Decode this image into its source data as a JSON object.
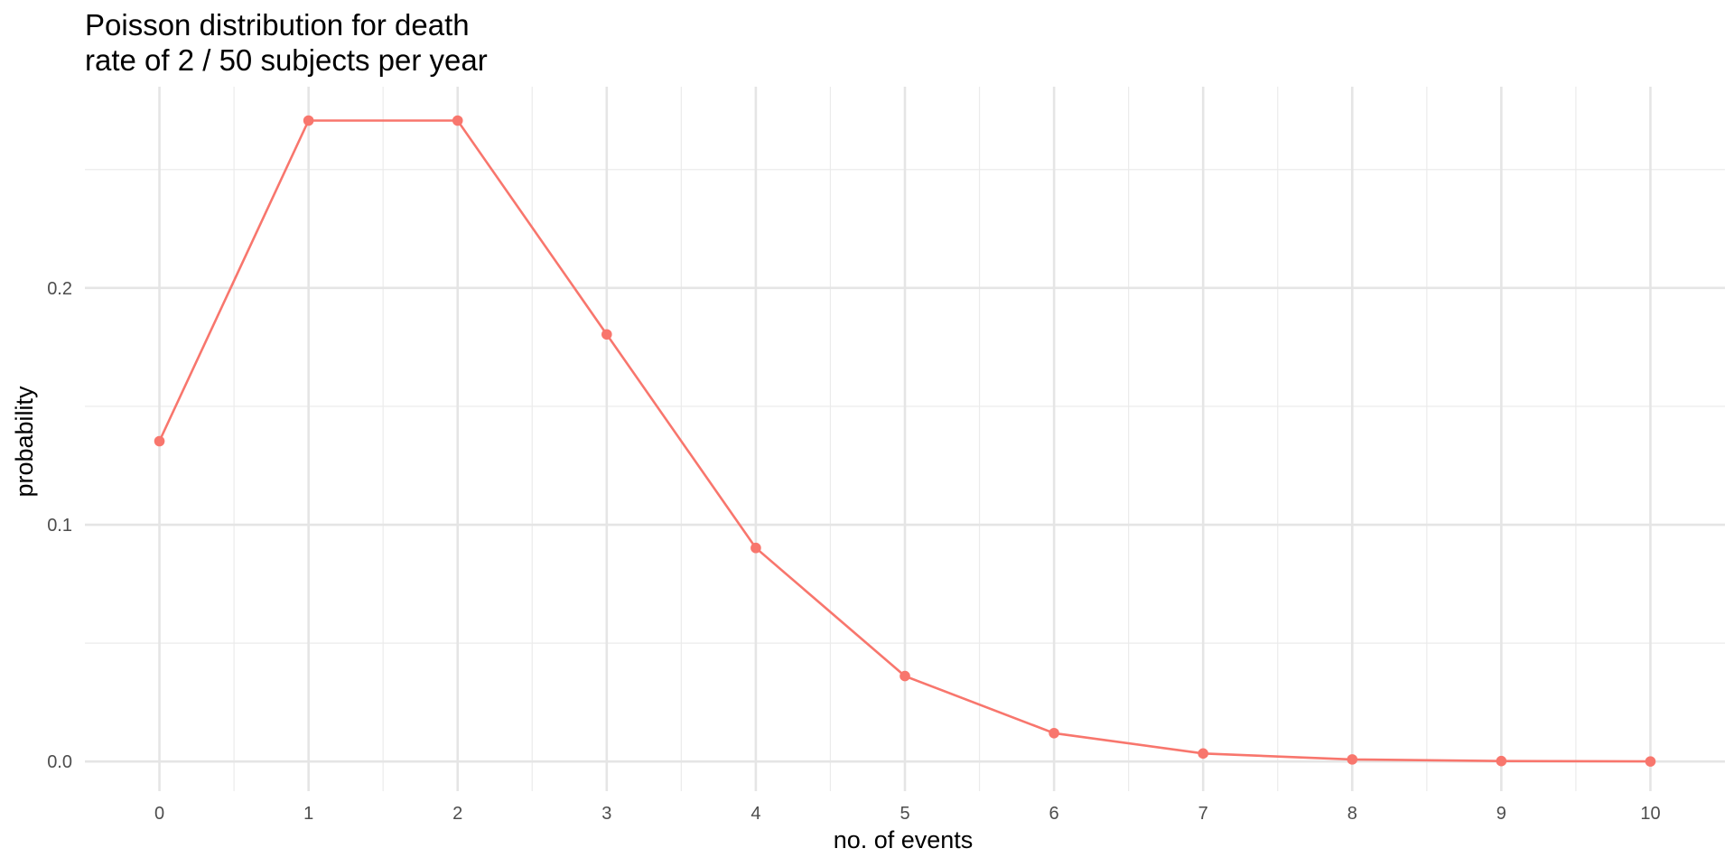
{
  "chart_data": {
    "type": "line",
    "title_line1": "Poisson distribution for death",
    "title_line2": "rate of 2 / 50 subjects per year",
    "xlabel": "no. of events",
    "ylabel": "probability",
    "x": [
      0,
      1,
      2,
      3,
      4,
      5,
      6,
      7,
      8,
      9,
      10
    ],
    "y": [
      0.1353,
      0.2707,
      0.2707,
      0.1804,
      0.0902,
      0.0361,
      0.012,
      0.0034,
      0.0009,
      0.0002,
      4e-05
    ],
    "xlim": [
      -0.5,
      10.5
    ],
    "ylim": [
      -0.0125,
      0.285
    ],
    "x_ticks": [
      "0",
      "1",
      "2",
      "3",
      "4",
      "5",
      "6",
      "7",
      "8",
      "9",
      "10"
    ],
    "y_ticks": [
      0.0,
      0.1,
      0.2
    ],
    "y_tick_labels": [
      "0.0",
      "0.1",
      "0.2"
    ],
    "grid": true,
    "legend": "none",
    "series_color": "#F8766D"
  }
}
